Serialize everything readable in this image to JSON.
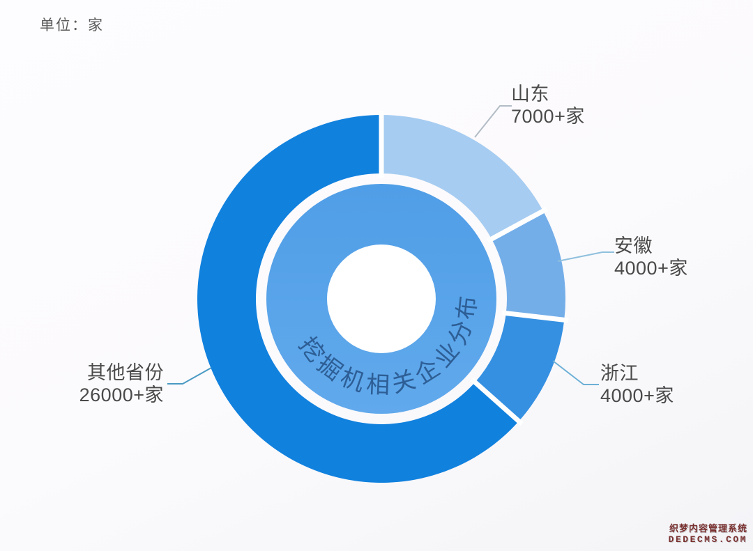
{
  "unit_label": "单位：家",
  "chart_data": {
    "type": "pie",
    "subtype": "donut",
    "title": "挖掘机相关企业分布",
    "unit": "家",
    "categories": [
      "山东",
      "安徽",
      "浙江",
      "其他省份"
    ],
    "values": [
      7000,
      4000,
      4000,
      26000
    ],
    "value_labels": [
      "7000+家",
      "4000+家",
      "4000+家",
      "26000+家"
    ],
    "slugs": [
      "shandong",
      "anhui",
      "zhejiang",
      "others"
    ],
    "colors": [
      "#a6ccf1",
      "#74aee9",
      "#3590e2",
      "#1181de"
    ],
    "inner_disc_color_top": "#509ee7",
    "inner_disc_color_bottom": "#61a9ec",
    "center_text_color": "#2d5e95",
    "separator_color": "#ffffff",
    "hole_color": "#ffffff",
    "start_angle_deg": 0,
    "direction": "clockwise",
    "legend": "none",
    "labels_style": "external callouts with leader lines"
  },
  "watermark": {
    "line1": "织梦内容管理系统",
    "line2": "DEDECMS.COM",
    "color": "#7a2f2f"
  }
}
